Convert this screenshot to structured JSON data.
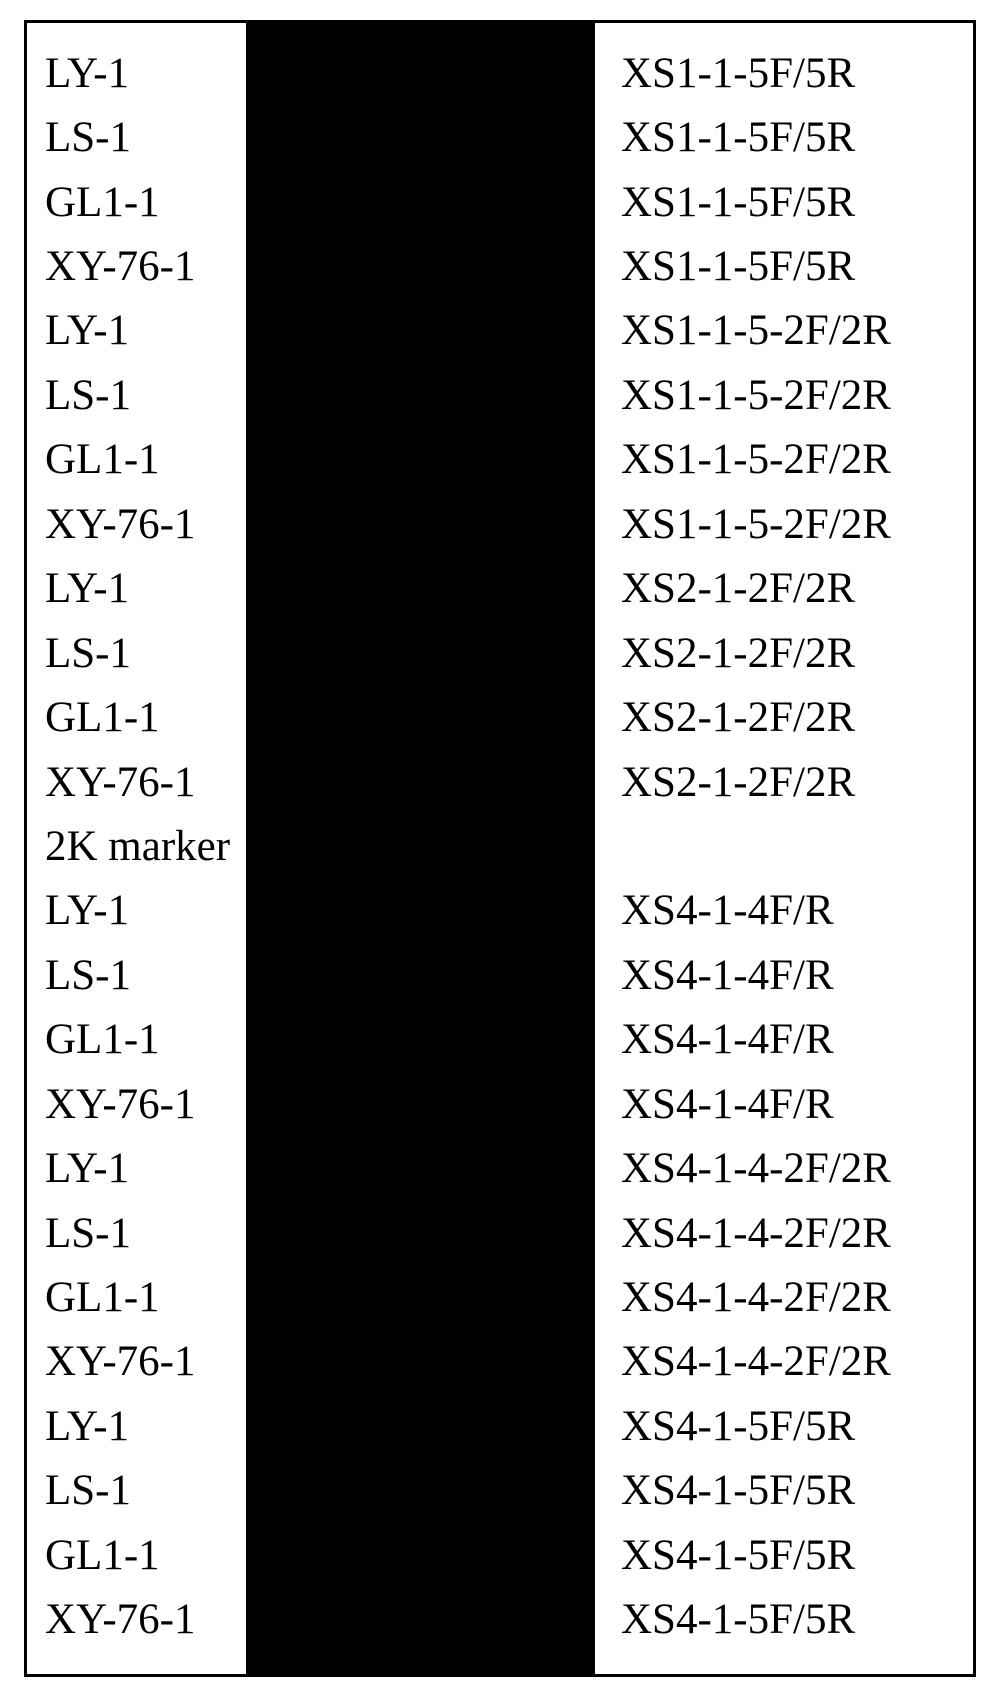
{
  "table": {
    "border_color": "#000000",
    "middle_column_color": "#000000",
    "background_color": "#ffffff",
    "font_family": "Times New Roman",
    "font_size_pt": 32,
    "rows": [
      {
        "left": "LY-1",
        "right": "XS1-1-5F/5R"
      },
      {
        "left": "LS-1",
        "right": "XS1-1-5F/5R"
      },
      {
        "left": "GL1-1",
        "right": "XS1-1-5F/5R"
      },
      {
        "left": "XY-76-1",
        "right": "XS1-1-5F/5R"
      },
      {
        "left": "LY-1",
        "right": "XS1-1-5-2F/2R"
      },
      {
        "left": "LS-1",
        "right": "XS1-1-5-2F/2R"
      },
      {
        "left": "GL1-1",
        "right": "XS1-1-5-2F/2R"
      },
      {
        "left": "XY-76-1",
        "right": "XS1-1-5-2F/2R"
      },
      {
        "left": "LY-1",
        "right": "XS2-1-2F/2R"
      },
      {
        "left": "LS-1",
        "right": "XS2-1-2F/2R"
      },
      {
        "left": "GL1-1",
        "right": "XS2-1-2F/2R"
      },
      {
        "left": "XY-76-1",
        "right": "XS2-1-2F/2R"
      },
      {
        "left": "2K marker",
        "right": ""
      },
      {
        "left": "LY-1",
        "right": "XS4-1-4F/R"
      },
      {
        "left": "LS-1",
        "right": "XS4-1-4F/R"
      },
      {
        "left": "GL1-1",
        "right": "XS4-1-4F/R"
      },
      {
        "left": "XY-76-1",
        "right": "XS4-1-4F/R"
      },
      {
        "left": "LY-1",
        "right": "XS4-1-4-2F/2R"
      },
      {
        "left": "LS-1",
        "right": "XS4-1-4-2F/2R"
      },
      {
        "left": "GL1-1",
        "right": "XS4-1-4-2F/2R"
      },
      {
        "left": "XY-76-1",
        "right": "XS4-1-4-2F/2R"
      },
      {
        "left": "LY-1",
        "right": "XS4-1-5F/5R"
      },
      {
        "left": "LS-1",
        "right": "XS4-1-5F/5R"
      },
      {
        "left": "GL1-1",
        "right": "XS4-1-5F/5R"
      },
      {
        "left": "XY-76-1",
        "right": "XS4-1-5F/5R"
      }
    ]
  }
}
